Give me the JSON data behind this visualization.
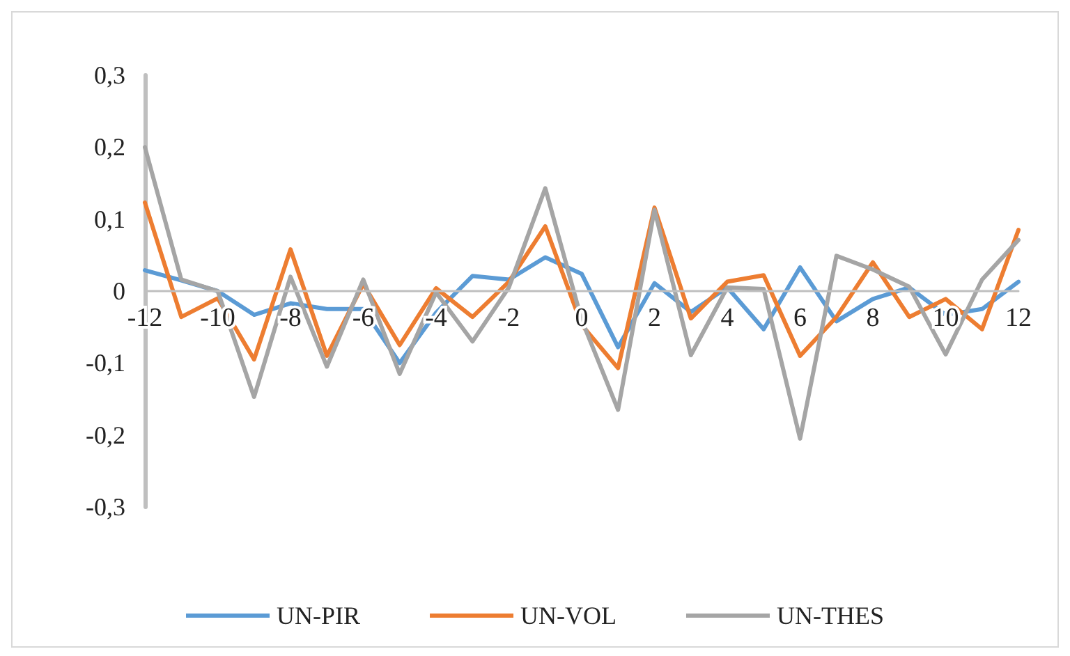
{
  "chart_data": {
    "type": "line",
    "categories": [
      "-12",
      null,
      "-10",
      null,
      "-8",
      null,
      "-6",
      null,
      "-4",
      null,
      "-2",
      null,
      "0",
      null,
      "2",
      null,
      "4",
      null,
      "6",
      null,
      "8",
      null,
      "10",
      null,
      "12"
    ],
    "series": [
      {
        "name": "UN-PIR",
        "color": "#5b9bd5",
        "values": [
          0.029,
          0.015,
          0,
          -0.033,
          -0.017,
          -0.025,
          -0.025,
          -0.1,
          -0.03,
          0.021,
          0.016,
          0.047,
          0.024,
          -0.078,
          0.011,
          -0.029,
          0.005,
          -0.053,
          0.033,
          -0.042,
          -0.011,
          0.005,
          -0.033,
          -0.025,
          0.013
        ]
      },
      {
        "name": "UN-VOL",
        "color": "#ed7d31",
        "values": [
          0.123,
          -0.036,
          -0.01,
          -0.095,
          0.058,
          -0.09,
          0.01,
          -0.075,
          0.004,
          -0.036,
          0.013,
          0.09,
          -0.047,
          -0.107,
          0.116,
          -0.038,
          0.013,
          0.022,
          -0.09,
          -0.036,
          0.04,
          -0.036,
          -0.011,
          -0.053,
          0.085
        ]
      },
      {
        "name": "UN-THES",
        "color": "#a5a5a5",
        "values": [
          0.2,
          0.016,
          0,
          -0.147,
          0.02,
          -0.105,
          0.016,
          -0.115,
          -0.002,
          -0.07,
          0.005,
          0.143,
          -0.04,
          -0.165,
          0.113,
          -0.089,
          0.005,
          0.003,
          -0.205,
          0.049,
          0.03,
          0.006,
          -0.088,
          0.016,
          0.071
        ]
      }
    ],
    "ylim": [
      -0.3,
      0.3
    ],
    "yticks": [
      {
        "value": -0.3,
        "label": "-0,3"
      },
      {
        "value": -0.2,
        "label": "-0,2"
      },
      {
        "value": -0.1,
        "label": "-0,1"
      },
      0,
      {
        "value": 0.1,
        "label": "0,1"
      },
      {
        "value": 0.2,
        "label": "0,2"
      },
      {
        "value": 0.3,
        "label": "0,3"
      }
    ],
    "grid": false,
    "legend": "bottom",
    "marker": "none",
    "line_style": "solid"
  }
}
